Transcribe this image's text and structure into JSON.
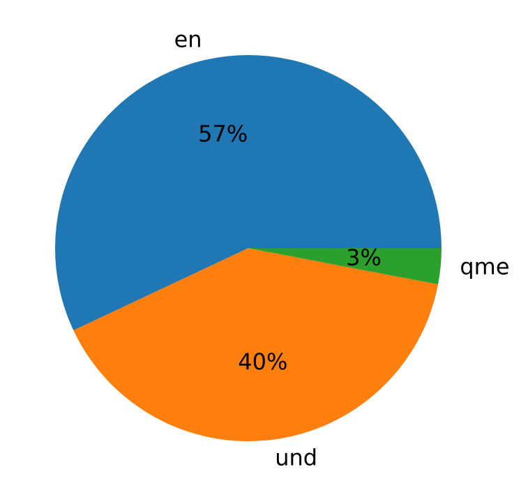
{
  "chart_data": {
    "type": "pie",
    "categories": [
      "en",
      "und",
      "qme"
    ],
    "values": [
      57,
      40,
      3
    ],
    "value_labels": [
      "57%",
      "40%",
      "3%"
    ],
    "colors": [
      "#1f77b4",
      "#ff7f0e",
      "#2ca02c"
    ],
    "start_angle": 0
  }
}
